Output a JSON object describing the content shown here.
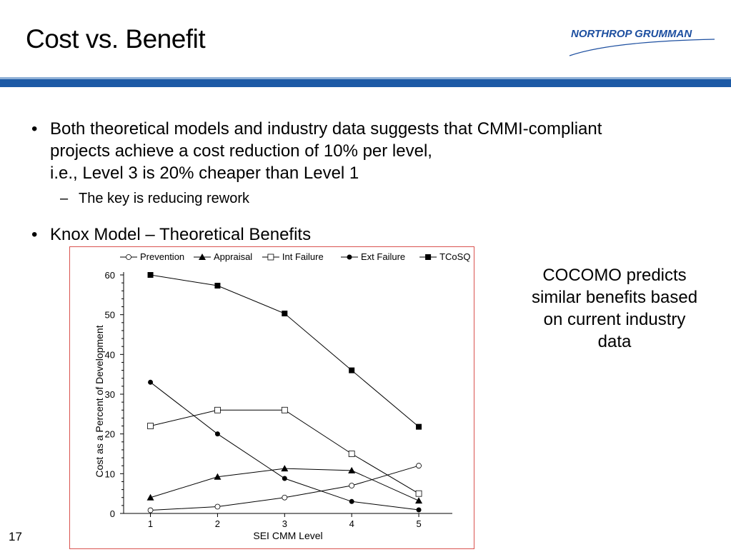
{
  "slide": {
    "title": "Cost vs. Benefit",
    "logo_text": "NORTHROP GRUMMAN",
    "bullets": [
      {
        "lines": [
          "Both theoretical models and industry data suggests that CMMI-compliant",
          "projects achieve a cost reduction of 10% per level,",
          "i.e., Level 3 is 20% cheaper than Level 1"
        ],
        "sub": "The key is reducing rework"
      },
      {
        "lines": [
          "Knox Model – Theoretical Benefits"
        ]
      }
    ],
    "side_note": "COCOMO predicts similar benefits based on current industry data",
    "page_number": "17",
    "colors": {
      "accent_bar": "#1d5aa6",
      "accent_bar_light": "#8fb0d6",
      "chart_border": "#d9534f",
      "logo": "#1d4fa0"
    }
  },
  "chart_data": {
    "type": "line",
    "xlabel": "SEI CMM Level",
    "ylabel": "Cost as a Percent of Development",
    "xlim": [
      0.6,
      5.5
    ],
    "ylim": [
      0,
      60
    ],
    "x_ticks": [
      "1",
      "2",
      "3",
      "4",
      "5"
    ],
    "y_ticks": [
      "0",
      "10",
      "20",
      "30",
      "40",
      "50",
      "60"
    ],
    "x": [
      1,
      2,
      3,
      4,
      5
    ],
    "legend_position": "top",
    "series": [
      {
        "name": "Prevention",
        "marker": "open-circle",
        "values": [
          0.8,
          1.7,
          4,
          7,
          12
        ]
      },
      {
        "name": "Appraisal",
        "marker": "triangle",
        "values": [
          4,
          9.2,
          11.3,
          10.8,
          3.2
        ]
      },
      {
        "name": "Int Failure",
        "marker": "open-square",
        "values": [
          22,
          26,
          26,
          15,
          5
        ]
      },
      {
        "name": "Ext Failure",
        "marker": "filled-circle",
        "values": [
          33,
          20,
          8.8,
          3,
          0.9
        ]
      },
      {
        "name": "TCoSQ",
        "marker": "filled-square",
        "values": [
          60,
          57.3,
          50.3,
          36,
          21.8
        ]
      }
    ]
  }
}
